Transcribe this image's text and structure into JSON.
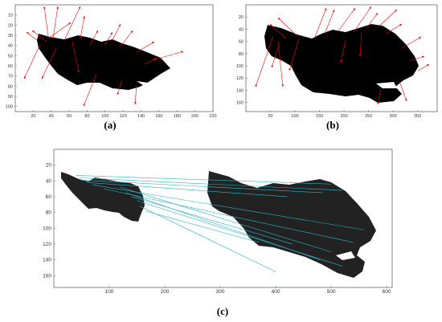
{
  "chart_data": [
    {
      "type": "scatter",
      "panel_label": "(a)",
      "xlim": [
        0,
        220
      ],
      "ylim": [
        0,
        105
      ],
      "y_inverted": true,
      "grid": false,
      "x_ticks": [
        "20",
        "40",
        "60",
        "80",
        "100",
        "120",
        "140",
        "160",
        "180",
        "200",
        "220"
      ],
      "y_ticks": [
        "10",
        "20",
        "30",
        "40",
        "50",
        "60",
        "70",
        "80",
        "90",
        "100"
      ],
      "shape_color": "#000000",
      "arrow_color": "#ff0000"
    },
    {
      "type": "scatter",
      "panel_label": "(b)",
      "xlim": [
        0,
        390
      ],
      "ylim": [
        0,
        175
      ],
      "y_inverted": true,
      "grid": false,
      "x_ticks": [
        "50",
        "100",
        "150",
        "200",
        "250",
        "300",
        "350"
      ],
      "y_ticks": [
        "20",
        "40",
        "60",
        "80",
        "100",
        "120",
        "140",
        "160"
      ],
      "shape_color": "#000000",
      "arrow_color": "#ff0000"
    },
    {
      "type": "line",
      "panel_label": "(c)",
      "xlim": [
        0,
        610
      ],
      "ylim": [
        0,
        175
      ],
      "y_inverted": true,
      "grid": false,
      "x_ticks": [
        "100",
        "200",
        "300",
        "400",
        "500",
        "600"
      ],
      "y_ticks": [
        "20",
        "40",
        "60",
        "80",
        "100",
        "120",
        "140",
        "160"
      ],
      "shape_color": "#222222",
      "line_color": "#2ab7c9",
      "matches": [
        [
          [
            40,
            33
          ],
          [
            500,
            44
          ]
        ],
        [
          [
            45,
            36
          ],
          [
            520,
            52
          ]
        ],
        [
          [
            50,
            39
          ],
          [
            485,
            55
          ]
        ],
        [
          [
            60,
            42
          ],
          [
            420,
            60
          ]
        ],
        [
          [
            70,
            45
          ],
          [
            560,
            102
          ]
        ],
        [
          [
            90,
            50
          ],
          [
            540,
            118
          ]
        ],
        [
          [
            120,
            48
          ],
          [
            500,
            130
          ]
        ],
        [
          [
            130,
            55
          ],
          [
            480,
            140
          ]
        ],
        [
          [
            140,
            60
          ],
          [
            430,
            120
          ]
        ],
        [
          [
            150,
            65
          ],
          [
            520,
            148
          ]
        ],
        [
          [
            155,
            72
          ],
          [
            400,
            155
          ]
        ],
        [
          [
            165,
            78
          ],
          [
            370,
            118
          ]
        ]
      ]
    }
  ]
}
